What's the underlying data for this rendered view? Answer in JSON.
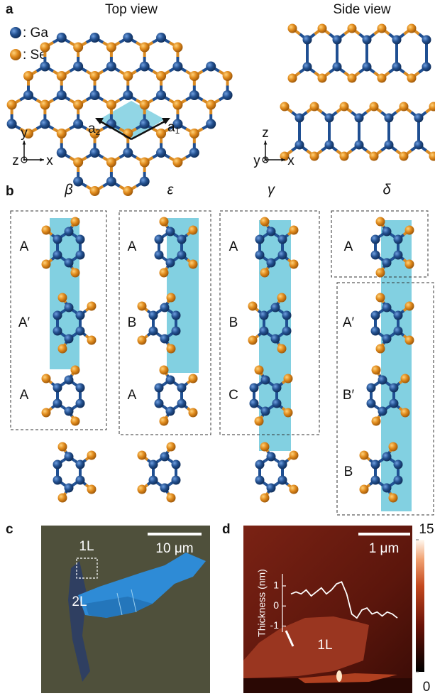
{
  "panel_a": {
    "label": "a",
    "top_view": {
      "title": "Top view",
      "legend": [
        ": Ga",
        ": Se"
      ],
      "vectors": [
        {
          "base": "a",
          "sub": "2"
        },
        {
          "base": "a",
          "sub": "1"
        }
      ],
      "axes": [
        "y",
        "z",
        "x"
      ]
    },
    "side_view": {
      "title": "Side view",
      "axes": [
        "z",
        "y",
        "x"
      ]
    }
  },
  "panel_b": {
    "label": "b",
    "columns": [
      {
        "phase": "β",
        "stacking": [
          "A",
          "A′",
          "A"
        ]
      },
      {
        "phase": "ε",
        "stacking": [
          "A",
          "B",
          "A"
        ]
      },
      {
        "phase": "γ",
        "stacking": [
          "A",
          "B",
          "C"
        ]
      },
      {
        "phase": "δ",
        "stacking": [
          "A",
          "A′",
          "B′",
          "B"
        ]
      }
    ]
  },
  "panel_c": {
    "label": "c",
    "scale_bar": "10 μm",
    "regions": [
      "1L",
      "2L"
    ]
  },
  "panel_d": {
    "label": "d",
    "scale_bar": "1 μm",
    "region": "1L",
    "inset": {
      "type": "line",
      "ylabel": "Thickness (nm)",
      "ylim": [
        -1.3,
        1.6
      ],
      "yticks": [
        -1,
        0,
        1
      ],
      "values": [
        0.6,
        0.7,
        0.6,
        0.8,
        0.5,
        0.7,
        0.9,
        0.6,
        0.8,
        1.1,
        1.2,
        0.6,
        -0.4,
        -0.6,
        -0.2,
        -0.1,
        -0.4,
        -0.3,
        -0.5,
        -0.3,
        -0.4,
        -0.6
      ]
    },
    "colorbar": {
      "lim": [
        0,
        15
      ],
      "ticks": [
        0,
        15
      ]
    }
  }
}
